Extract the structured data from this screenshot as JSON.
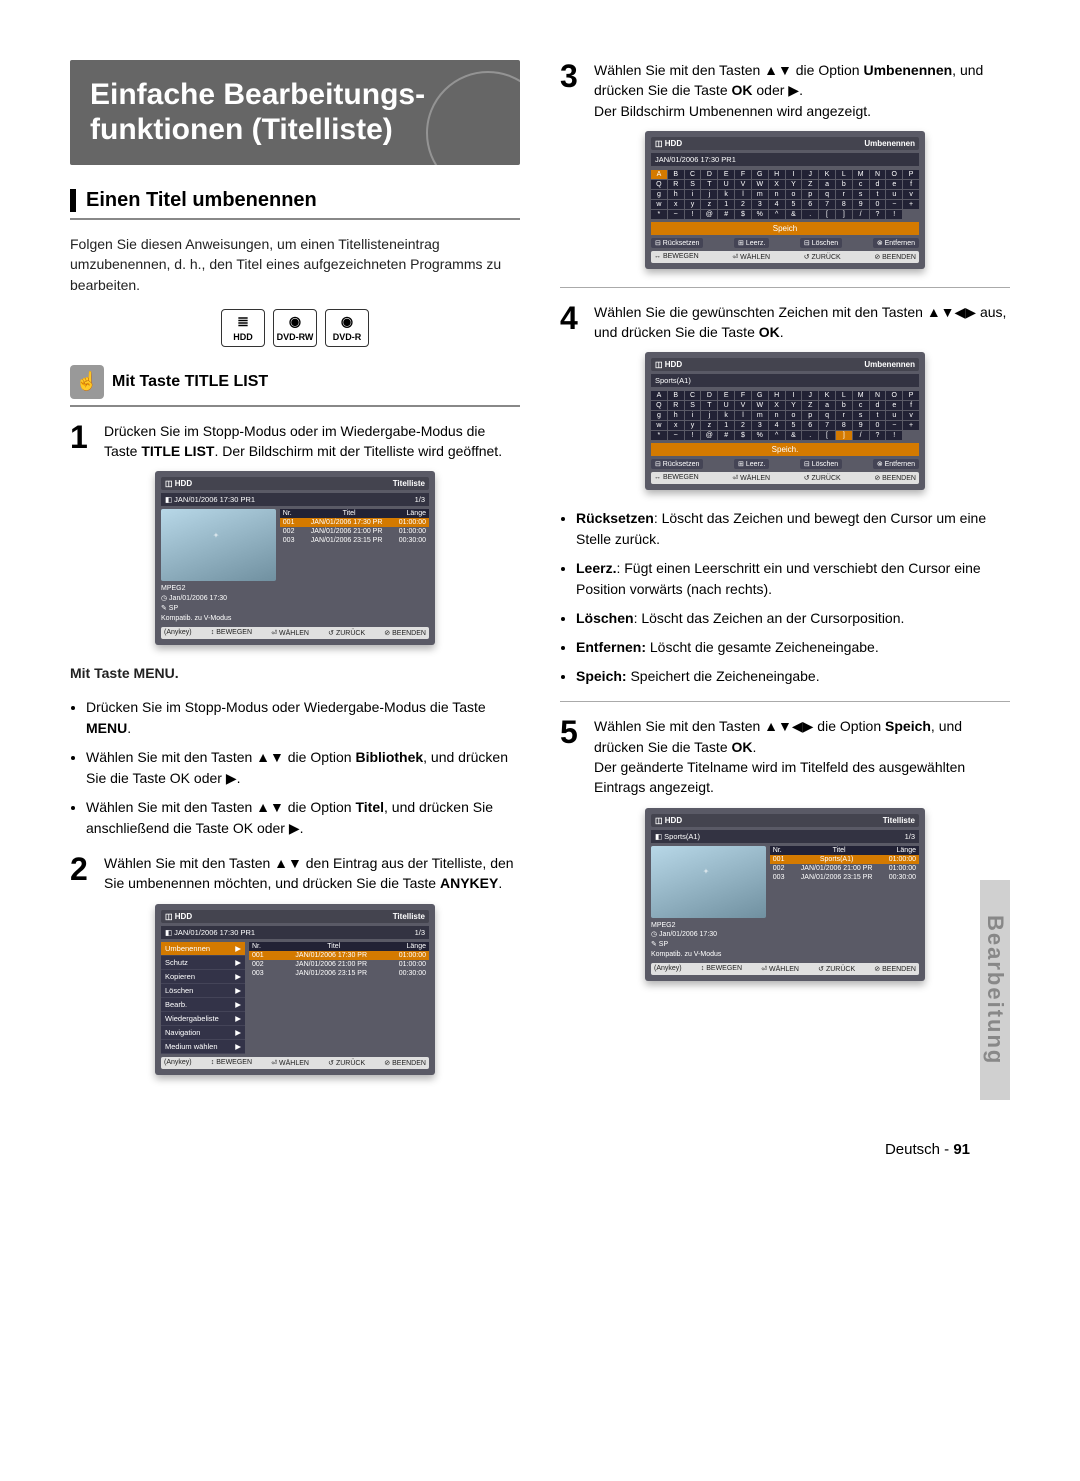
{
  "side_tab": "Bearbeitung",
  "heading": "Einfache Bearbeitungs-\nfunktionen (Titelliste)",
  "section1_title": "Einen Titel umbenennen",
  "section1_intro": "Folgen Sie diesen Anweisungen, um einen Titellisteneintrag umzubenennen, d. h., den Titel eines aufgezeichneten Programms zu bearbeiten.",
  "media_icons": [
    "HDD",
    "DVD-RW",
    "DVD-R"
  ],
  "sub_title": "Mit Taste TITLE LIST",
  "step1": {
    "num": "1",
    "text_a": "Drücken Sie im Stopp-Modus oder im Wiedergabe-Modus die Taste ",
    "text_b": "TITLE LIST",
    "text_c": ". Der Bildschirm mit der Titelliste wird geöffnet."
  },
  "ss_titelliste": {
    "badge": "HDD",
    "title": "Titelliste",
    "sub": "JAN/01/2006 17:30 PR1",
    "counter": "1/3",
    "list_h": [
      "Nr.",
      "Titel",
      "Länge"
    ],
    "rows": [
      {
        "n": "001",
        "t": "JAN/01/2006 17:30 PR",
        "l": "01:00:00",
        "sel": true
      },
      {
        "n": "002",
        "t": "JAN/01/2006 21:00 PR",
        "l": "01:00:00",
        "sel": false
      },
      {
        "n": "003",
        "t": "JAN/01/2006 23:15 PR",
        "l": "00:30:00",
        "sel": false
      }
    ],
    "info": [
      "MPEG2",
      "◷ Jan/01/2006 17:30",
      "✎ SP",
      "Kompatib. zu V-Modus"
    ],
    "footer": [
      "(Anykey)",
      "↕ BEWEGEN",
      "⏎ WÄHLEN",
      "↺ ZURÜCK",
      "⊘ BEENDEN"
    ]
  },
  "menu_hint_title": "Mit Taste MENU.",
  "menu_bullets": [
    {
      "pre": "Drücken Sie im Stopp-Modus oder Wiedergabe-Modus die Taste ",
      "b": "MENU",
      "post": "."
    },
    {
      "pre": "Wählen Sie mit den Tasten ▲▼ die Option ",
      "b": "Bibliothek",
      "post": ", und drücken Sie die Taste OK oder ▶."
    },
    {
      "pre": "Wählen Sie mit den Tasten ▲▼ die Option ",
      "b": "Titel",
      "post": ", und drücken Sie anschließend die Taste OK oder ▶."
    }
  ],
  "step2": {
    "num": "2",
    "text": "Wählen Sie mit den Tasten ▲▼ den Eintrag aus der Titelliste, den Sie umbenennen möchten, und drücken Sie die Taste ",
    "b": "ANYKEY",
    "post": "."
  },
  "ss_popup": {
    "badge": "HDD",
    "title": "Titelliste",
    "sub": "JAN/01/2006 17:30 PR1",
    "counter": "1/3",
    "popup_items": [
      "Umbenennen",
      "Schutz",
      "Kopieren",
      "Löschen",
      "Bearb.",
      "Wiedergabeliste",
      "Navigation",
      "Medium wählen"
    ],
    "popup_sel": 0,
    "list_h": [
      "Nr.",
      "Titel",
      "Länge"
    ],
    "rows": [
      {
        "n": "001",
        "t": "JAN/01/2006 17:30 PR",
        "l": "01:00:00",
        "sel": true
      },
      {
        "n": "002",
        "t": "JAN/01/2006 21:00 PR",
        "l": "01:00:00",
        "sel": false
      },
      {
        "n": "003",
        "t": "JAN/01/2006 23:15 PR",
        "l": "00:30:00",
        "sel": false
      }
    ],
    "footer": [
      "(Anykey)",
      "↕ BEWEGEN",
      "⏎ WÄHLEN",
      "↺ ZURÜCK",
      "⊘ BEENDEN"
    ]
  },
  "step3": {
    "num": "3",
    "text_a": "Wählen Sie mit den Tasten ▲▼ die Option ",
    "b1": "Umbenennen",
    "text_b": ", und drücken Sie die Taste ",
    "b2": "OK",
    "text_c": " oder ▶.",
    "text_d": "Der Bildschirm Umbenennen wird angezeigt."
  },
  "ss_kbd1": {
    "badge": "HDD",
    "title": "Umbenennen",
    "sub": "JAN/01/2006 17:30 PR1",
    "sel_index": 0,
    "keys": [
      "A",
      "B",
      "C",
      "D",
      "E",
      "F",
      "G",
      "H",
      "I",
      "J",
      "K",
      "L",
      "M",
      "N",
      "O",
      "P",
      "Q",
      "R",
      "S",
      "T",
      "U",
      "V",
      "W",
      "X",
      "Y",
      "Z",
      "a",
      "b",
      "c",
      "d",
      "e",
      "f",
      "g",
      "h",
      "i",
      "j",
      "k",
      "l",
      "m",
      "n",
      "o",
      "p",
      "q",
      "r",
      "s",
      "t",
      "u",
      "v",
      "w",
      "x",
      "y",
      "z",
      "1",
      "2",
      "3",
      "4",
      "5",
      "6",
      "7",
      "8",
      "9",
      "0",
      "−",
      "+",
      "*",
      "~",
      "!",
      "@",
      "#",
      "$",
      "%",
      "^",
      "&",
      ".",
      "[",
      "]",
      "/",
      "?",
      "!"
    ],
    "save": "Speich",
    "actions": [
      "⊟ Rücksetzen",
      "⊞ Leerz.",
      "⊟ Löschen",
      "⊗ Entfernen"
    ],
    "footer": [
      "↔ BEWEGEN",
      "⏎ WÄHLEN",
      "↺ ZURÜCK",
      "⊘ BEENDEN"
    ]
  },
  "step4": {
    "num": "4",
    "text_a": "Wählen Sie die gewünschten Zeichen mit den Tasten ▲▼◀▶ aus, und drücken Sie die Taste ",
    "b": "OK",
    "post": "."
  },
  "ss_kbd2": {
    "badge": "HDD",
    "title": "Umbenennen",
    "sub": "Sports(A1)",
    "sel_index": 75,
    "keys_ref": "ss_kbd1",
    "save": "Speich.",
    "actions": [
      "⊟ Rücksetzen",
      "⊞ Leerz.",
      "⊟ Löschen",
      "⊗ Entfernen"
    ],
    "footer": [
      "↔ BEWEGEN",
      "⏎ WÄHLEN",
      "↺ ZURÜCK",
      "⊘ BEENDEN"
    ]
  },
  "explain_bullets": [
    {
      "b": "Rücksetzen",
      "t": ": Löscht das Zeichen und bewegt den Cursor um eine Stelle zurück."
    },
    {
      "b": "Leerz.",
      "t": ": Fügt einen Leerschritt ein und verschiebt den Cursor eine Position vorwärts (nach rechts)."
    },
    {
      "b": "Löschen",
      "t": ": Löscht das Zeichen an der Cursorposition."
    },
    {
      "b": "Entfernen:",
      "t": " Löscht die gesamte Zeicheneingabe."
    },
    {
      "b": "Speich:",
      "t": " Speichert die Zeicheneingabe."
    }
  ],
  "step5": {
    "num": "5",
    "text_a": "Wählen Sie mit den Tasten ▲▼◀▶ die Option ",
    "b1": "Speich",
    "text_b": ", und drücken Sie die Taste ",
    "b2": "OK",
    "text_c": ".",
    "text_d": "Der geänderte Titelname wird im Titelfeld des ausgewählten Eintrags angezeigt."
  },
  "ss_final": {
    "badge": "HDD",
    "title": "Titelliste",
    "sub": "Sports(A1)",
    "counter": "1/3",
    "list_h": [
      "Nr.",
      "Titel",
      "Länge"
    ],
    "rows": [
      {
        "n": "001",
        "t": "Sports(A1)",
        "l": "01:00:00",
        "sel": true
      },
      {
        "n": "002",
        "t": "JAN/01/2006 21:00 PR",
        "l": "01:00:00",
        "sel": false
      },
      {
        "n": "003",
        "t": "JAN/01/2006 23:15 PR",
        "l": "00:30:00",
        "sel": false
      }
    ],
    "info": [
      "MPEG2",
      "◷ Jan/01/2006 17:30",
      "✎ SP",
      "Kompatib. zu V-Modus"
    ],
    "footer": [
      "(Anykey)",
      "↕ BEWEGEN",
      "⏎ WÄHLEN",
      "↺ ZURÜCK",
      "⊘ BEENDEN"
    ]
  },
  "page_footer_lang": "Deutsch",
  "page_footer_sep": " - ",
  "page_footer_num": "91"
}
